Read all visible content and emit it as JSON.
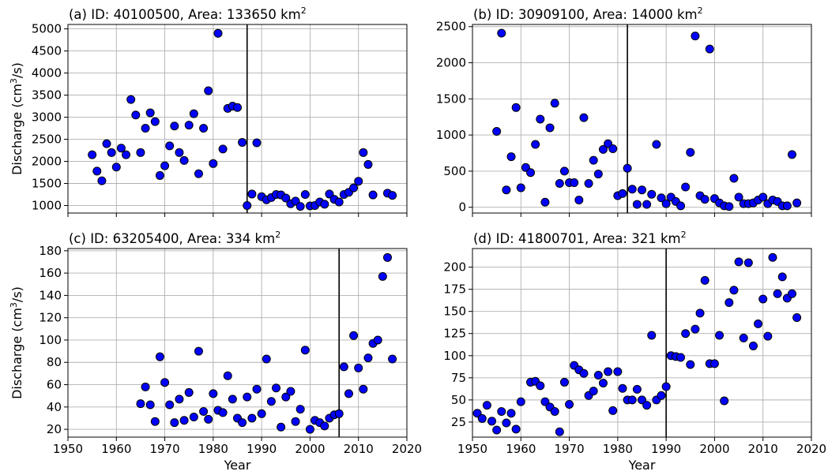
{
  "chart_data": [
    {
      "type": "scatter",
      "title": "(a) ID: 40100500, Area: 133650 km",
      "title_sup": "2",
      "ylabel_pre": "Discharge (cm",
      "ylabel_sup": "3",
      "ylabel_post": "/s)",
      "xlabel": "",
      "xlim": [
        1950,
        2020
      ],
      "ylim": [
        830,
        5100
      ],
      "xticks": [
        1950,
        1960,
        1970,
        1980,
        1990,
        2000,
        2010,
        2020
      ],
      "yticks": [
        1000,
        1500,
        2000,
        2500,
        3000,
        3500,
        4000,
        4500,
        5000
      ],
      "show_xtick_labels": false,
      "show_ylabel": true,
      "grid": true,
      "change_year": 1987,
      "marker_color": "#0000ff",
      "x": [
        1955,
        1956,
        1957,
        1958,
        1959,
        1960,
        1961,
        1962,
        1963,
        1964,
        1965,
        1966,
        1967,
        1968,
        1969,
        1970,
        1971,
        1972,
        1973,
        1974,
        1975,
        1976,
        1977,
        1978,
        1979,
        1980,
        1981,
        1982,
        1983,
        1984,
        1985,
        1986,
        1987,
        1988,
        1989,
        1990,
        1991,
        1992,
        1993,
        1994,
        1995,
        1996,
        1997,
        1998,
        1999,
        2000,
        2001,
        2002,
        2003,
        2004,
        2005,
        2006,
        2007,
        2008,
        2009,
        2010,
        2011,
        2012,
        2013,
        2016,
        2017
      ],
      "y": [
        2150,
        1780,
        1560,
        2400,
        2200,
        1870,
        2300,
        2150,
        3400,
        3050,
        2200,
        2750,
        3100,
        2900,
        1680,
        1900,
        2350,
        2800,
        2200,
        2020,
        2820,
        3080,
        1720,
        2750,
        3600,
        1950,
        4900,
        2280,
        3200,
        3250,
        3220,
        2430,
        1000,
        1260,
        2420,
        1200,
        1130,
        1180,
        1250,
        1240,
        1170,
        1040,
        1100,
        980,
        1250,
        990,
        1000,
        1080,
        1030,
        1260,
        1140,
        1080,
        1250,
        1300,
        1400,
        1550,
        2200,
        1930,
        1240,
        1280,
        1230
      ]
    },
    {
      "type": "scatter",
      "title": "(b) ID: 30909100, Area: 14000 km",
      "title_sup": "2",
      "ylabel_pre": "",
      "ylabel_sup": "",
      "ylabel_post": "",
      "xlabel": "",
      "xlim": [
        1950,
        2020
      ],
      "ylim": [
        -80,
        2530
      ],
      "xticks": [
        1950,
        1960,
        1970,
        1980,
        1990,
        2000,
        2010,
        2020
      ],
      "yticks": [
        0,
        500,
        1000,
        1500,
        2000,
        2500
      ],
      "show_xtick_labels": false,
      "show_ylabel": false,
      "grid": true,
      "change_year": 1982,
      "marker_color": "#0000ff",
      "x": [
        1955,
        1956,
        1957,
        1958,
        1959,
        1960,
        1961,
        1962,
        1963,
        1964,
        1965,
        1966,
        1967,
        1968,
        1969,
        1970,
        1971,
        1972,
        1973,
        1974,
        1975,
        1976,
        1977,
        1978,
        1979,
        1980,
        1981,
        1982,
        1983,
        1984,
        1985,
        1986,
        1987,
        1988,
        1989,
        1990,
        1991,
        1992,
        1993,
        1994,
        1995,
        1996,
        1997,
        1998,
        1999,
        2000,
        2001,
        2002,
        2003,
        2004,
        2005,
        2006,
        2007,
        2008,
        2009,
        2010,
        2011,
        2012,
        2013,
        2014,
        2015,
        2016,
        2017
      ],
      "y": [
        1050,
        2410,
        240,
        700,
        1380,
        270,
        550,
        480,
        870,
        1220,
        70,
        1100,
        1440,
        330,
        500,
        340,
        340,
        100,
        1240,
        330,
        650,
        460,
        800,
        880,
        810,
        160,
        190,
        540,
        250,
        40,
        240,
        40,
        180,
        870,
        130,
        50,
        140,
        80,
        20,
        280,
        760,
        2370,
        160,
        110,
        2190,
        120,
        60,
        20,
        10,
        400,
        140,
        50,
        50,
        60,
        100,
        140,
        50,
        100,
        80,
        20,
        20,
        730,
        60
      ]
    },
    {
      "type": "scatter",
      "title": "(c) ID: 63205400, Area: 334 km",
      "title_sup": "2",
      "ylabel_pre": "Discharge (cm",
      "ylabel_sup": "3",
      "ylabel_post": "/s)",
      "xlabel": "Year",
      "xlim": [
        1950,
        2020
      ],
      "ylim": [
        13,
        182
      ],
      "xticks": [
        1950,
        1960,
        1970,
        1980,
        1990,
        2000,
        2010,
        2020
      ],
      "yticks": [
        20,
        40,
        60,
        80,
        100,
        120,
        140,
        160,
        180
      ],
      "show_xtick_labels": true,
      "show_ylabel": true,
      "grid": true,
      "change_year": 2006,
      "marker_color": "#0000ff",
      "x": [
        1965,
        1966,
        1967,
        1968,
        1969,
        1970,
        1971,
        1972,
        1973,
        1974,
        1975,
        1976,
        1977,
        1978,
        1979,
        1980,
        1981,
        1982,
        1983,
        1984,
        1985,
        1986,
        1987,
        1988,
        1989,
        1990,
        1991,
        1992,
        1993,
        1994,
        1995,
        1996,
        1997,
        1998,
        1999,
        2000,
        2001,
        2002,
        2003,
        2004,
        2005,
        2006,
        2007,
        2008,
        2009,
        2010,
        2011,
        2012,
        2013,
        2014,
        2015,
        2016,
        2017
      ],
      "y": [
        43,
        58,
        42,
        27,
        85,
        62,
        42,
        26,
        47,
        28,
        53,
        31,
        90,
        36,
        29,
        52,
        37,
        35,
        68,
        47,
        30,
        26,
        49,
        30,
        56,
        34,
        83,
        45,
        57,
        22,
        49,
        54,
        27,
        38,
        91,
        20,
        28,
        26,
        23,
        30,
        33,
        34,
        76,
        52,
        104,
        75,
        56,
        84,
        97,
        100,
        157,
        174,
        83
      ]
    },
    {
      "type": "scatter",
      "title": "(d) ID: 41800701, Area: 321 km",
      "title_sup": "2",
      "ylabel_pre": "",
      "ylabel_sup": "",
      "ylabel_post": "",
      "xlabel": "Year",
      "xlim": [
        1950,
        2020
      ],
      "ylim": [
        8,
        221
      ],
      "xticks": [
        1950,
        1960,
        1970,
        1980,
        1990,
        2000,
        2010,
        2020
      ],
      "yticks": [
        25,
        50,
        75,
        100,
        125,
        150,
        175,
        200
      ],
      "show_xtick_labels": true,
      "show_ylabel": false,
      "grid": true,
      "change_year": 1990,
      "marker_color": "#0000ff",
      "x": [
        1951,
        1952,
        1953,
        1954,
        1955,
        1956,
        1957,
        1958,
        1959,
        1960,
        1962,
        1963,
        1964,
        1965,
        1966,
        1967,
        1968,
        1969,
        1970,
        1971,
        1972,
        1973,
        1974,
        1975,
        1976,
        1977,
        1978,
        1979,
        1980,
        1981,
        1982,
        1983,
        1984,
        1985,
        1986,
        1987,
        1988,
        1989,
        1990,
        1991,
        1992,
        1993,
        1994,
        1995,
        1996,
        1997,
        1998,
        1999,
        2000,
        2001,
        2002,
        2003,
        2004,
        2005,
        2006,
        2007,
        2008,
        2009,
        2010,
        2011,
        2012,
        2013,
        2014,
        2015,
        2016,
        2017
      ],
      "y": [
        35,
        29,
        44,
        26,
        16,
        37,
        24,
        35,
        17,
        48,
        70,
        71,
        66,
        48,
        42,
        37,
        14,
        70,
        45,
        89,
        84,
        80,
        55,
        60,
        78,
        69,
        82,
        38,
        82,
        63,
        50,
        50,
        62,
        50,
        44,
        123,
        50,
        55,
        65,
        100,
        99,
        98,
        125,
        90,
        130,
        148,
        185,
        91,
        91,
        123,
        49,
        160,
        174,
        206,
        120,
        205,
        111,
        136,
        164,
        122,
        211,
        170,
        189,
        165,
        170,
        143
      ]
    }
  ]
}
